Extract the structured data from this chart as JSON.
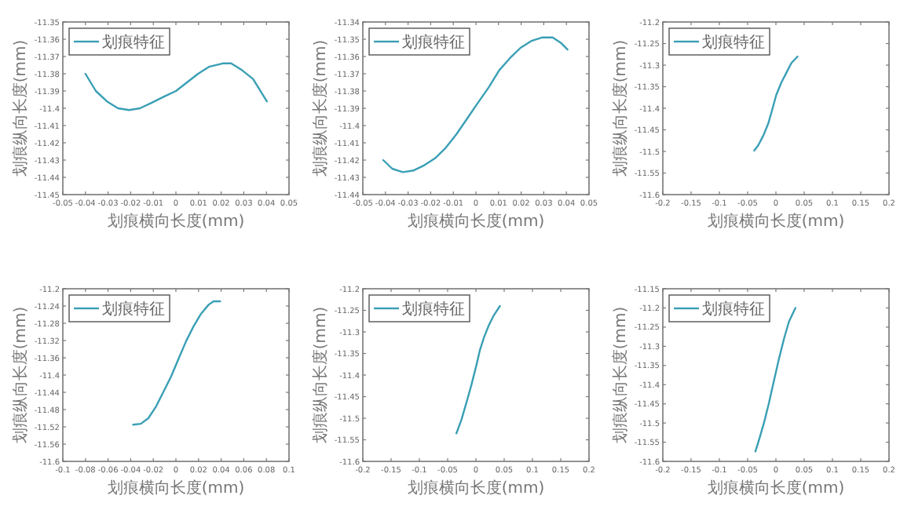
{
  "chart_data": [
    {
      "type": "line",
      "xlabel": "划痕横向长度(mm)",
      "ylabel": "划痕纵向长度(mm)",
      "legend": "top left",
      "xlim": [
        -0.05,
        0.05
      ],
      "ylim": [
        -11.45,
        -11.35
      ],
      "xticks": [
        -0.05,
        -0.04,
        -0.03,
        -0.02,
        -0.01,
        0,
        0.01,
        0.02,
        0.03,
        0.04,
        0.05
      ],
      "yticks": [
        -11.45,
        -11.44,
        -11.43,
        -11.42,
        -11.41,
        -11.4,
        -11.39,
        -11.38,
        -11.37,
        -11.36,
        -11.35
      ],
      "series": [
        {
          "name": "划痕特征",
          "color": "#3a9fb5",
          "x": [
            -0.04,
            -0.0354,
            -0.0305,
            -0.0256,
            -0.0207,
            -0.0159,
            -0.011,
            -0.0049,
            0,
            0.0049,
            0.0098,
            0.0146,
            0.0207,
            0.0244,
            0.0293,
            0.0341,
            0.0402
          ],
          "values": [
            -11.38,
            -11.39,
            -11.396,
            -11.4,
            -11.401,
            -11.4,
            -11.397,
            -11.393,
            -11.39,
            -11.385,
            -11.38,
            -11.376,
            -11.374,
            -11.374,
            -11.378,
            -11.383,
            -11.396
          ]
        }
      ]
    },
    {
      "type": "line",
      "xlabel": "划痕横向长度(mm)",
      "ylabel": "划痕纵向长度(mm)",
      "legend": "top left",
      "xlim": [
        -0.05,
        0.05
      ],
      "ylim": [
        -11.44,
        -11.34
      ],
      "xticks": [
        -0.05,
        -0.04,
        -0.03,
        -0.02,
        -0.01,
        0,
        0.01,
        0.02,
        0.03,
        0.04,
        0.05
      ],
      "yticks": [
        -11.44,
        -11.43,
        -11.42,
        -11.41,
        -11.4,
        -11.39,
        -11.38,
        -11.37,
        -11.36,
        -11.35,
        -11.34
      ],
      "series": [
        {
          "name": "划痕特征",
          "color": "#3a9fb5",
          "x": [
            -0.041,
            -0.037,
            -0.0323,
            -0.0275,
            -0.0228,
            -0.0181,
            -0.0134,
            -0.0086,
            -0.0039,
            0.0008,
            0.0056,
            0.0103,
            0.015,
            0.0197,
            0.0245,
            0.0292,
            0.0339,
            0.0375,
            0.0405
          ],
          "values": [
            -11.42,
            -11.425,
            -11.427,
            -11.426,
            -11.423,
            -11.419,
            -11.413,
            -11.405,
            -11.396,
            -11.387,
            -11.378,
            -11.368,
            -11.361,
            -11.355,
            -11.351,
            -11.349,
            -11.349,
            -11.352,
            -11.356
          ]
        }
      ]
    },
    {
      "type": "line",
      "xlabel": "划痕横向长度(mm)",
      "ylabel": "划痕纵向长度(mm)",
      "legend": "top left",
      "xlim": [
        -0.2,
        0.2
      ],
      "ylim": [
        -11.6,
        -11.2
      ],
      "xticks": [
        -0.2,
        -0.15,
        -0.1,
        -0.05,
        0,
        0.05,
        0.1,
        0.15,
        0.2
      ],
      "yticks": [
        -11.6,
        -11.55,
        -11.5,
        -11.45,
        -11.4,
        -11.35,
        -11.3,
        -11.25,
        -11.2
      ],
      "series": [
        {
          "name": "划痕特征",
          "color": "#3a9fb5",
          "x": [
            -0.0385,
            -0.0313,
            -0.0222,
            -0.0132,
            -0.0069,
            0.0004,
            0.0094,
            0.0184,
            0.0274,
            0.0383
          ],
          "values": [
            -11.498,
            -11.486,
            -11.463,
            -11.434,
            -11.405,
            -11.37,
            -11.341,
            -11.318,
            -11.295,
            -11.28
          ]
        }
      ]
    },
    {
      "type": "line",
      "xlabel": "划痕横向长度(mm)",
      "ylabel": "划痕纵向长度(mm)",
      "legend": "top left",
      "xlim": [
        -0.1,
        0.1
      ],
      "ylim": [
        -11.6,
        -11.2
      ],
      "xticks": [
        -0.1,
        -0.08,
        -0.06,
        -0.04,
        -0.02,
        0,
        0.02,
        0.04,
        0.06,
        0.08,
        0.1
      ],
      "yticks": [
        -11.6,
        -11.56,
        -11.52,
        -11.48,
        -11.44,
        -11.4,
        -11.36,
        -11.32,
        -11.28,
        -11.24,
        -11.2
      ],
      "series": [
        {
          "name": "划痕特征",
          "color": "#3a9fb5",
          "x": [
            -0.0378,
            -0.0311,
            -0.0244,
            -0.0178,
            -0.0111,
            -0.0044,
            0.0022,
            0.0089,
            0.0156,
            0.0222,
            0.0289,
            0.0333,
            0.0391
          ],
          "values": [
            -11.515,
            -11.513,
            -11.5,
            -11.474,
            -11.439,
            -11.404,
            -11.363,
            -11.322,
            -11.287,
            -11.258,
            -11.237,
            -11.229,
            -11.229
          ]
        }
      ]
    },
    {
      "type": "line",
      "xlabel": "划痕横向长度(mm)",
      "ylabel": "划痕纵向长度(mm)",
      "legend": "top left",
      "xlim": [
        -0.2,
        0.2
      ],
      "ylim": [
        -11.6,
        -11.2
      ],
      "xticks": [
        -0.2,
        -0.15,
        -0.1,
        -0.05,
        0,
        0.05,
        0.1,
        0.15,
        0.2
      ],
      "yticks": [
        -11.6,
        -11.55,
        -11.5,
        -11.45,
        -11.4,
        -11.35,
        -11.3,
        -11.25,
        -11.2
      ],
      "series": [
        {
          "name": "划痕特征",
          "color": "#3a9fb5",
          "x": [
            -0.0345,
            -0.0257,
            -0.0168,
            -0.008,
            0.0009,
            0.0071,
            0.0142,
            0.023,
            0.0319,
            0.0425
          ],
          "values": [
            -11.535,
            -11.504,
            -11.464,
            -11.423,
            -11.377,
            -11.342,
            -11.313,
            -11.284,
            -11.261,
            -11.24
          ]
        }
      ]
    },
    {
      "type": "line",
      "xlabel": "划痕横向长度(mm)",
      "ylabel": "划痕纵向长度(mm)",
      "legend": "top left",
      "xlim": [
        -0.2,
        0.2
      ],
      "ylim": [
        -11.6,
        -11.15
      ],
      "xticks": [
        -0.2,
        -0.15,
        -0.1,
        -0.05,
        0,
        0.05,
        0.1,
        0.15,
        0.2
      ],
      "yticks": [
        -11.6,
        -11.55,
        -11.5,
        -11.45,
        -11.4,
        -11.35,
        -11.3,
        -11.25,
        -11.2,
        -11.15
      ],
      "series": [
        {
          "name": "划痕特征",
          "color": "#3a9fb5",
          "x": [
            -0.0363,
            -0.0301,
            -0.0212,
            -0.0124,
            -0.0035,
            0.0053,
            0.0142,
            0.023,
            0.0345
          ],
          "values": [
            -11.574,
            -11.545,
            -11.5,
            -11.448,
            -11.39,
            -11.333,
            -11.281,
            -11.236,
            -11.2
          ]
        }
      ]
    }
  ]
}
